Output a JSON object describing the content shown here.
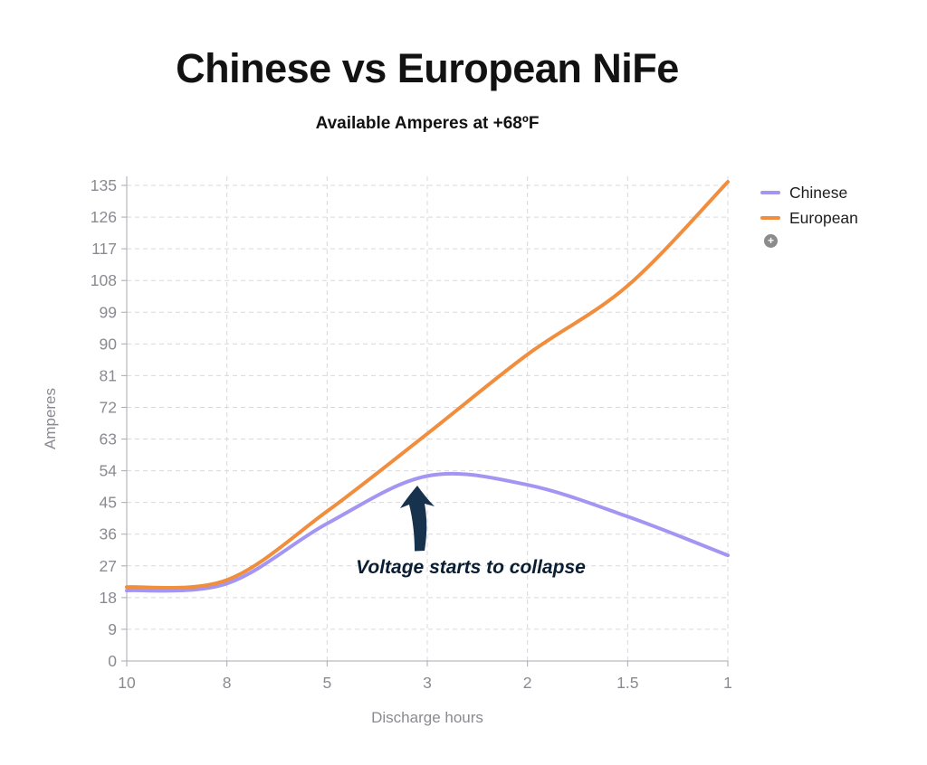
{
  "header": {
    "title": "Chinese vs European NiFe",
    "subtitle": "Available Amperes at +68ºF"
  },
  "chart_data": {
    "type": "line",
    "title": "Chinese vs European NiFe",
    "subtitle": "Available Amperes at +68ºF",
    "xlabel": "Discharge hours",
    "ylabel": "Amperes",
    "x_categories": [
      "10",
      "8",
      "5",
      "3",
      "2",
      "1.5",
      "1"
    ],
    "y_ticks": [
      0,
      9,
      18,
      27,
      36,
      45,
      54,
      63,
      72,
      81,
      90,
      99,
      108,
      117,
      126,
      135
    ],
    "ylim": [
      0,
      135
    ],
    "grid": "dashed",
    "legend_position": "right",
    "series": [
      {
        "name": "Chinese",
        "color": "#a396f2",
        "values": [
          20,
          22,
          39,
          52.5,
          50,
          41,
          30
        ]
      },
      {
        "name": "European",
        "color": "#f08e3e",
        "values": [
          21,
          23,
          42.5,
          64.5,
          87,
          106.5,
          136
        ]
      }
    ],
    "annotation": {
      "text": "Voltage starts to collapse",
      "arrow_color": "#17324d",
      "points_to": {
        "x": "3",
        "y": 53
      }
    }
  },
  "legend": {
    "plus_icon": "+"
  },
  "colors": {
    "tick_text": "#8a8a91",
    "axis": "#a9a9b0",
    "grid": "#d9d9dd",
    "title_text": "#121212",
    "annotation_text": "#0a1e33"
  }
}
